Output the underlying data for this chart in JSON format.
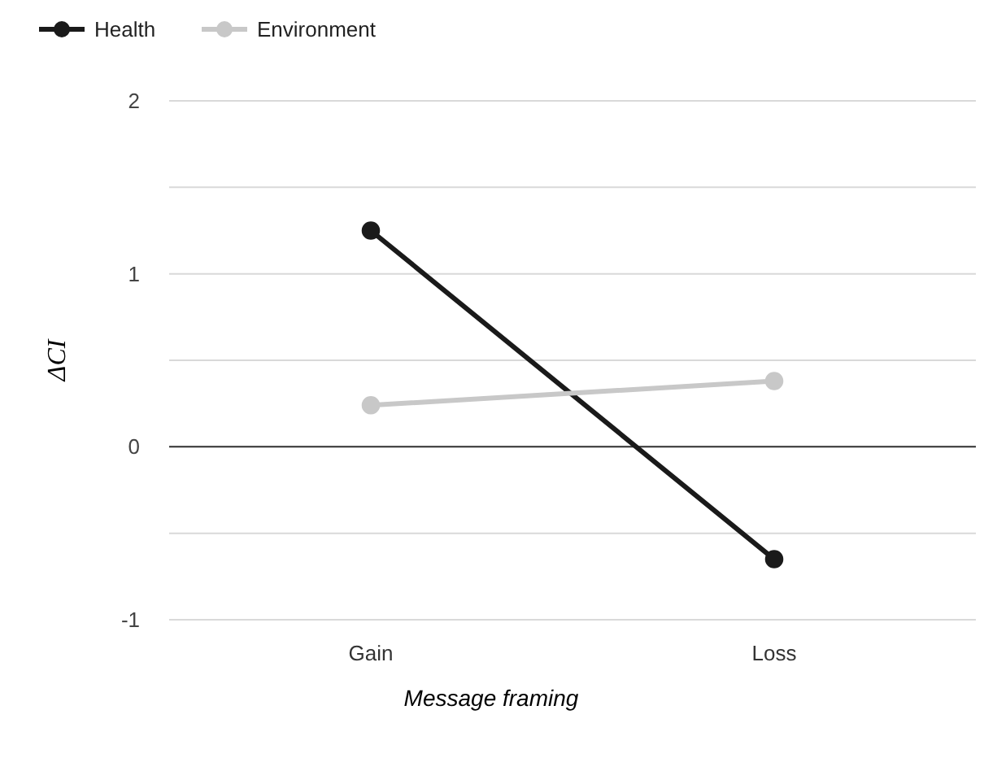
{
  "chart_data": {
    "type": "line",
    "xlabel": "Message framing",
    "ylabel": "ΔCI",
    "categories": [
      "Gain",
      "Loss"
    ],
    "series": [
      {
        "name": "Health",
        "color": "#1a1a1a",
        "values": [
          1.25,
          -0.65
        ]
      },
      {
        "name": "Environment",
        "color": "#c8c8c8",
        "values": [
          0.24,
          0.38
        ]
      }
    ],
    "ylim": [
      -1,
      2
    ],
    "yticks": [
      -1,
      {
        "value": -0.5,
        "label": null
      },
      0,
      {
        "value": 0.5,
        "label": null
      },
      1,
      {
        "value": 1.5,
        "label": null
      },
      2
    ],
    "grid": "y",
    "legend": "top left",
    "marker": "circle",
    "ref_lines": [
      {
        "axis": "y",
        "value": 0,
        "color": "#333333"
      }
    ]
  }
}
